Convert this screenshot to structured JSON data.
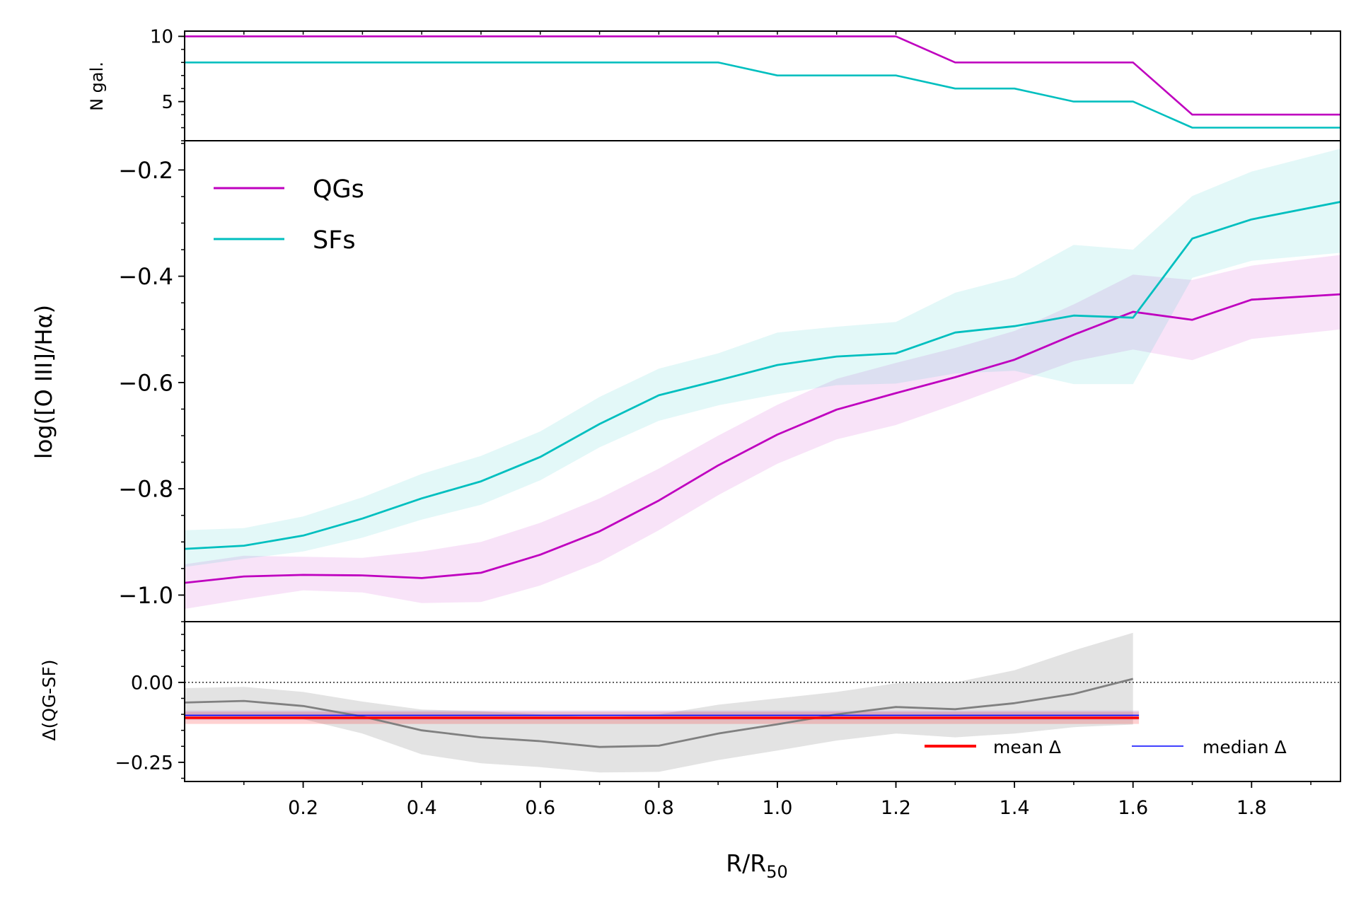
{
  "chart_data": [
    {
      "panel": "top",
      "type": "line",
      "ylabel": "N gal.",
      "xlim": [
        0.0,
        1.95
      ],
      "ylim": [
        2,
        10.4
      ],
      "yticks": [
        5,
        10
      ],
      "ytick_labels": [
        "5",
        "10"
      ],
      "x": [
        0.0,
        0.1,
        0.2,
        0.3,
        0.4,
        0.5,
        0.6,
        0.7,
        0.8,
        0.9,
        1.0,
        1.1,
        1.2,
        1.3,
        1.4,
        1.5,
        1.6,
        1.7,
        1.8,
        1.9,
        1.95
      ],
      "series": [
        {
          "name": "QGs",
          "color": "#bf00bf",
          "values": [
            10,
            10,
            10,
            10,
            10,
            10,
            10,
            10,
            10,
            10,
            10,
            10,
            10,
            8,
            8,
            8,
            8,
            4,
            4,
            4,
            4
          ]
        },
        {
          "name": "SFs",
          "color": "#00bfbf",
          "values": [
            8,
            8,
            8,
            8,
            8,
            8,
            8,
            8,
            8,
            8,
            7,
            7,
            7,
            6,
            6,
            5,
            5,
            3,
            3,
            3,
            3
          ]
        }
      ]
    },
    {
      "panel": "middle",
      "type": "line",
      "ylabel": "log([O III]/Hα)",
      "xlim": [
        0.0,
        1.95
      ],
      "ylim": [
        -1.05,
        -0.145
      ],
      "yticks": [
        -1.0,
        -0.8,
        -0.6,
        -0.4,
        -0.2
      ],
      "ytick_labels": [
        "−1.0",
        "−0.8",
        "−0.6",
        "−0.4",
        "−0.2"
      ],
      "legend": {
        "position": "top-left",
        "entries": [
          "QGs",
          "SFs"
        ]
      },
      "x": [
        0.0,
        0.1,
        0.2,
        0.3,
        0.4,
        0.5,
        0.6,
        0.7,
        0.8,
        0.9,
        1.0,
        1.1,
        1.2,
        1.3,
        1.4,
        1.5,
        1.6,
        1.7,
        1.8,
        1.95
      ],
      "series": [
        {
          "name": "QGs",
          "color": "#bf00bf",
          "values": [
            -0.977,
            -0.965,
            -0.962,
            -0.963,
            -0.968,
            -0.958,
            -0.924,
            -0.88,
            -0.822,
            -0.756,
            -0.698,
            -0.651,
            -0.62,
            -0.59,
            -0.557,
            -0.51,
            -0.467,
            -0.482,
            -0.444,
            -0.434
          ],
          "lower": [
            -1.026,
            -1.008,
            -0.991,
            -0.995,
            -1.015,
            -1.013,
            -0.982,
            -0.938,
            -0.878,
            -0.812,
            -0.753,
            -0.707,
            -0.68,
            -0.641,
            -0.6,
            -0.56,
            -0.538,
            -0.558,
            -0.518,
            -0.5
          ],
          "upper": [
            -0.942,
            -0.926,
            -0.928,
            -0.93,
            -0.918,
            -0.9,
            -0.864,
            -0.818,
            -0.762,
            -0.7,
            -0.642,
            -0.593,
            -0.563,
            -0.535,
            -0.503,
            -0.453,
            -0.397,
            -0.407,
            -0.38,
            -0.36
          ]
        },
        {
          "name": "SFs",
          "color": "#00bfbf",
          "values": [
            -0.913,
            -0.907,
            -0.888,
            -0.856,
            -0.818,
            -0.786,
            -0.74,
            -0.678,
            -0.624,
            -0.596,
            -0.567,
            -0.551,
            -0.545,
            -0.506,
            -0.494,
            -0.474,
            -0.478,
            -0.329,
            -0.293,
            -0.26
          ],
          "lower": [
            -0.947,
            -0.932,
            -0.918,
            -0.892,
            -0.858,
            -0.83,
            -0.784,
            -0.722,
            -0.672,
            -0.643,
            -0.622,
            -0.605,
            -0.602,
            -0.583,
            -0.578,
            -0.603,
            -0.603,
            -0.403,
            -0.371,
            -0.356
          ],
          "upper": [
            -0.878,
            -0.874,
            -0.852,
            -0.816,
            -0.772,
            -0.738,
            -0.692,
            -0.627,
            -0.574,
            -0.545,
            -0.506,
            -0.495,
            -0.486,
            -0.431,
            -0.402,
            -0.341,
            -0.35,
            -0.249,
            -0.203,
            -0.16
          ]
        }
      ]
    },
    {
      "panel": "bottom",
      "type": "line",
      "ylabel": "Δ(QG-SF)",
      "xlabel": "R/R50",
      "xlim": [
        0.0,
        1.95
      ],
      "ylim": [
        -0.31,
        0.19
      ],
      "yticks": [
        -0.25,
        0.0
      ],
      "ytick_labels": [
        "−0.25",
        "0.00"
      ],
      "xticks": [
        0.2,
        0.4,
        0.6,
        0.8,
        1.0,
        1.2,
        1.4,
        1.6,
        1.8
      ],
      "xtick_labels": [
        "0.2",
        "0.4",
        "0.6",
        "0.8",
        "1.0",
        "1.2",
        "1.4",
        "1.6",
        "1.8"
      ],
      "reference_line": 0.0,
      "x": [
        0.0,
        0.1,
        0.2,
        0.3,
        0.4,
        0.5,
        0.6,
        0.7,
        0.8,
        0.9,
        1.0,
        1.1,
        1.2,
        1.3,
        1.4,
        1.5,
        1.6
      ],
      "difference": [
        -0.063,
        -0.058,
        -0.074,
        -0.107,
        -0.15,
        -0.172,
        -0.184,
        -0.202,
        -0.198,
        -0.16,
        -0.131,
        -0.1,
        -0.077,
        -0.084,
        -0.065,
        -0.036,
        0.011
      ],
      "difference_lower": [
        -0.11,
        -0.11,
        -0.115,
        -0.16,
        -0.225,
        -0.253,
        -0.265,
        -0.282,
        -0.28,
        -0.243,
        -0.213,
        -0.182,
        -0.16,
        -0.172,
        -0.16,
        -0.14,
        -0.132
      ],
      "difference_upper": [
        -0.018,
        -0.014,
        -0.03,
        -0.06,
        -0.085,
        -0.09,
        -0.1,
        -0.11,
        -0.1,
        -0.07,
        -0.05,
        -0.03,
        -0.003,
        0.0,
        0.038,
        0.1,
        0.155
      ],
      "mean_delta": -0.111,
      "mean_band": [
        -0.13,
        -0.092
      ],
      "median_delta": -0.103,
      "median_band": [
        -0.118,
        -0.088
      ],
      "band_xmax": 1.61,
      "legend": {
        "position": "bottom-right",
        "entries": [
          "mean Δ",
          "median Δ"
        ]
      }
    }
  ],
  "colors": {
    "qg": "#bf00bf",
    "sf": "#00bfbf",
    "difference": "#808080",
    "band_grey": "#e3e3e3",
    "mean": "#ff0000",
    "median": "#0000ff"
  },
  "labels": {
    "xlabel_main": "R/R",
    "xlabel_sub": "50",
    "legend_qg": "QGs",
    "legend_sf": "SFs",
    "legend_mean": "mean Δ",
    "legend_median": "median Δ"
  }
}
